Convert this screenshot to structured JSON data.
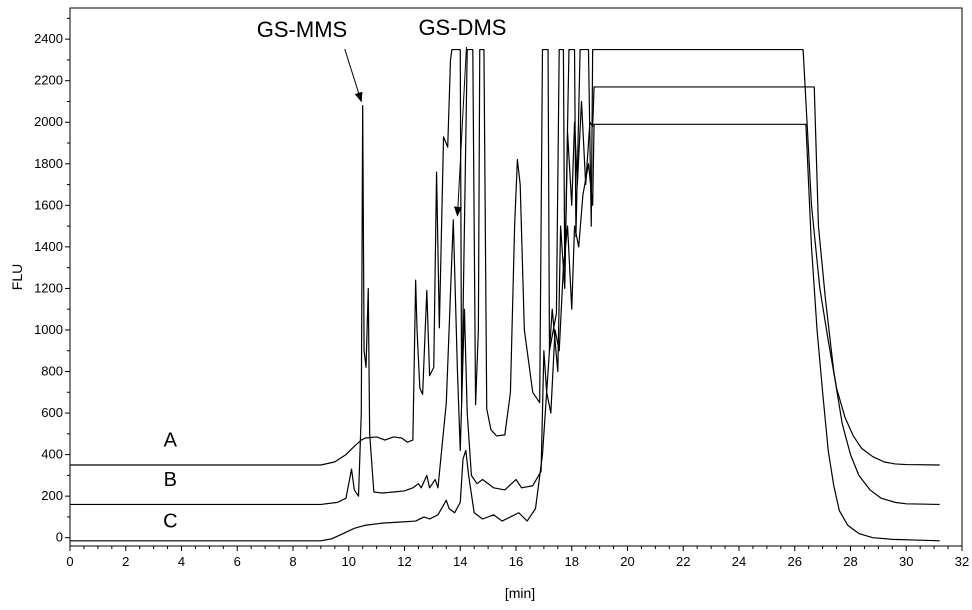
{
  "chart_data": {
    "type": "line",
    "xlabel": "[min]",
    "ylabel": "FLU",
    "xlim": [
      0,
      32
    ],
    "ylim": [
      -40,
      2550
    ],
    "x_ticks": [
      0,
      2,
      4,
      6,
      8,
      10,
      12,
      14,
      16,
      18,
      20,
      22,
      24,
      26,
      28,
      30,
      32
    ],
    "y_ticks": [
      0,
      200,
      400,
      600,
      800,
      1000,
      1200,
      1400,
      1600,
      1800,
      2000,
      2200,
      2400
    ],
    "grid": false,
    "legend": "none",
    "colors": {
      "line": "#000000",
      "background": "#ffffff"
    },
    "series": [
      {
        "name": "A",
        "points": [
          [
            0,
            350
          ],
          [
            9.0,
            350
          ],
          [
            9.5,
            365
          ],
          [
            9.9,
            400
          ],
          [
            10.2,
            440
          ],
          [
            10.45,
            470
          ],
          [
            10.6,
            480
          ],
          [
            11.0,
            485
          ],
          [
            11.3,
            470
          ],
          [
            11.6,
            485
          ],
          [
            11.9,
            480
          ],
          [
            12.1,
            460
          ],
          [
            12.3,
            470
          ],
          [
            12.4,
            1240
          ],
          [
            12.45,
            1000
          ],
          [
            12.55,
            720
          ],
          [
            12.65,
            690
          ],
          [
            12.8,
            1190
          ],
          [
            12.9,
            780
          ],
          [
            13.05,
            820
          ],
          [
            13.15,
            1760
          ],
          [
            13.25,
            1010
          ],
          [
            13.4,
            1930
          ],
          [
            13.55,
            1880
          ],
          [
            13.65,
            2300
          ],
          [
            13.7,
            2350
          ],
          [
            14.0,
            2350
          ],
          [
            14.05,
            650
          ],
          [
            14.25,
            2350
          ],
          [
            14.45,
            2350
          ],
          [
            14.55,
            640
          ],
          [
            14.65,
            1000
          ],
          [
            14.7,
            2350
          ],
          [
            14.85,
            2350
          ],
          [
            14.95,
            620
          ],
          [
            15.1,
            520
          ],
          [
            15.3,
            490
          ],
          [
            15.6,
            495
          ],
          [
            15.8,
            700
          ],
          [
            15.95,
            1500
          ],
          [
            16.05,
            1820
          ],
          [
            16.15,
            1700
          ],
          [
            16.3,
            1000
          ],
          [
            16.6,
            700
          ],
          [
            16.85,
            650
          ],
          [
            16.95,
            2350
          ],
          [
            17.15,
            2350
          ],
          [
            17.2,
            900
          ],
          [
            17.45,
            1080
          ],
          [
            17.55,
            2350
          ],
          [
            17.7,
            2350
          ],
          [
            17.75,
            1250
          ],
          [
            17.9,
            2350
          ],
          [
            18.1,
            2350
          ],
          [
            18.15,
            1450
          ],
          [
            18.3,
            2350
          ],
          [
            18.6,
            2350
          ],
          [
            18.7,
            1500
          ],
          [
            18.75,
            2350
          ],
          [
            26.3,
            2350
          ],
          [
            26.6,
            1600
          ],
          [
            26.9,
            1200
          ],
          [
            27.2,
            950
          ],
          [
            27.5,
            720
          ],
          [
            27.8,
            580
          ],
          [
            28.1,
            490
          ],
          [
            28.4,
            430
          ],
          [
            28.8,
            390
          ],
          [
            29.2,
            365
          ],
          [
            29.6,
            355
          ],
          [
            30.0,
            352
          ],
          [
            31.2,
            350
          ]
        ]
      },
      {
        "name": "B",
        "points": [
          [
            0,
            160
          ],
          [
            9.0,
            160
          ],
          [
            9.6,
            170
          ],
          [
            9.9,
            190
          ],
          [
            10.0,
            260
          ],
          [
            10.1,
            330
          ],
          [
            10.2,
            230
          ],
          [
            10.35,
            200
          ],
          [
            10.45,
            600
          ],
          [
            10.5,
            2080
          ],
          [
            10.55,
            900
          ],
          [
            10.62,
            820
          ],
          [
            10.7,
            1200
          ],
          [
            10.75,
            500
          ],
          [
            10.9,
            220
          ],
          [
            11.2,
            215
          ],
          [
            11.6,
            220
          ],
          [
            12.0,
            225
          ],
          [
            12.3,
            240
          ],
          [
            12.5,
            260
          ],
          [
            12.6,
            240
          ],
          [
            12.8,
            300
          ],
          [
            12.9,
            240
          ],
          [
            13.1,
            280
          ],
          [
            13.2,
            240
          ],
          [
            13.5,
            650
          ],
          [
            13.75,
            1530
          ],
          [
            13.9,
            800
          ],
          [
            14.0,
            420
          ],
          [
            14.15,
            1100
          ],
          [
            14.25,
            600
          ],
          [
            14.4,
            300
          ],
          [
            14.6,
            260
          ],
          [
            14.8,
            280
          ],
          [
            15.2,
            240
          ],
          [
            15.6,
            230
          ],
          [
            16.0,
            280
          ],
          [
            16.2,
            240
          ],
          [
            16.6,
            250
          ],
          [
            16.9,
            320
          ],
          [
            17.0,
            900
          ],
          [
            17.1,
            700
          ],
          [
            17.3,
            1100
          ],
          [
            17.5,
            800
          ],
          [
            17.6,
            1500
          ],
          [
            17.75,
            1200
          ],
          [
            17.85,
            1950
          ],
          [
            18.0,
            1600
          ],
          [
            18.1,
            2000
          ],
          [
            18.2,
            1700
          ],
          [
            18.35,
            2100
          ],
          [
            18.5,
            1700
          ],
          [
            18.65,
            2000
          ],
          [
            18.75,
            1980
          ],
          [
            18.8,
            2170
          ],
          [
            26.7,
            2170
          ],
          [
            26.85,
            1500
          ],
          [
            27.1,
            1150
          ],
          [
            27.4,
            800
          ],
          [
            27.7,
            550
          ],
          [
            28.0,
            400
          ],
          [
            28.3,
            300
          ],
          [
            28.7,
            230
          ],
          [
            29.1,
            190
          ],
          [
            29.6,
            170
          ],
          [
            30.0,
            163
          ],
          [
            31.2,
            160
          ]
        ]
      },
      {
        "name": "C",
        "points": [
          [
            0,
            -15
          ],
          [
            9.0,
            -15
          ],
          [
            9.4,
            -5
          ],
          [
            9.8,
            20
          ],
          [
            10.2,
            45
          ],
          [
            10.6,
            60
          ],
          [
            11.2,
            70
          ],
          [
            11.8,
            75
          ],
          [
            12.4,
            80
          ],
          [
            12.7,
            100
          ],
          [
            12.9,
            90
          ],
          [
            13.2,
            110
          ],
          [
            13.5,
            180
          ],
          [
            13.6,
            140
          ],
          [
            13.8,
            120
          ],
          [
            14.0,
            170
          ],
          [
            14.1,
            380
          ],
          [
            14.2,
            420
          ],
          [
            14.3,
            300
          ],
          [
            14.5,
            120
          ],
          [
            14.8,
            90
          ],
          [
            15.2,
            110
          ],
          [
            15.5,
            80
          ],
          [
            15.8,
            100
          ],
          [
            16.1,
            120
          ],
          [
            16.4,
            80
          ],
          [
            16.7,
            140
          ],
          [
            16.95,
            400
          ],
          [
            17.1,
            700
          ],
          [
            17.25,
            600
          ],
          [
            17.4,
            1000
          ],
          [
            17.55,
            900
          ],
          [
            17.7,
            1300
          ],
          [
            17.85,
            1500
          ],
          [
            18.0,
            1100
          ],
          [
            18.1,
            1500
          ],
          [
            18.25,
            1400
          ],
          [
            18.4,
            1650
          ],
          [
            18.6,
            1800
          ],
          [
            18.75,
            1600
          ],
          [
            18.8,
            1990
          ],
          [
            26.4,
            1990
          ],
          [
            26.6,
            1400
          ],
          [
            26.8,
            1000
          ],
          [
            27.0,
            700
          ],
          [
            27.2,
            420
          ],
          [
            27.4,
            250
          ],
          [
            27.6,
            130
          ],
          [
            27.9,
            60
          ],
          [
            28.3,
            20
          ],
          [
            28.8,
            0
          ],
          [
            29.5,
            -8
          ],
          [
            30.5,
            -12
          ],
          [
            31.2,
            -15
          ]
        ]
      }
    ],
    "annotations": [
      {
        "text": "GS-MMS",
        "x": 6.7,
        "y": 2410,
        "arrow_to": [
          10.45,
          2100
        ]
      },
      {
        "text": "GS-DMS",
        "x": 12.5,
        "y": 2420,
        "arrow_to": [
          13.9,
          1550
        ]
      }
    ],
    "series_labels": [
      {
        "text": "A",
        "x": 3.6,
        "y": 440
      },
      {
        "text": "B",
        "x": 3.6,
        "y": 250
      },
      {
        "text": "C",
        "x": 3.6,
        "y": 50
      }
    ]
  }
}
